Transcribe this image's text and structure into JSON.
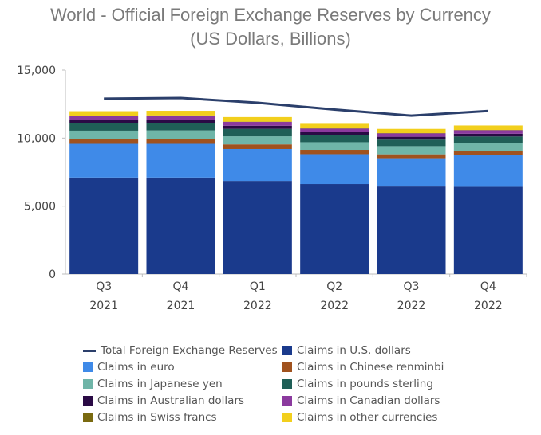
{
  "chart_data": {
    "type": "bar",
    "title_line1": "World - Official Foreign Exchange Reserves by Currency",
    "title_line2": "(US Dollars, Billions)",
    "categories": [
      {
        "quarter": "Q3",
        "year": "2021"
      },
      {
        "quarter": "Q4",
        "year": "2021"
      },
      {
        "quarter": "Q1",
        "year": "2022"
      },
      {
        "quarter": "Q2",
        "year": "2022"
      },
      {
        "quarter": "Q3",
        "year": "2022"
      },
      {
        "quarter": "Q4",
        "year": "2022"
      }
    ],
    "ylim": [
      0,
      15000
    ],
    "yticks": [
      0,
      5000,
      10000,
      15000
    ],
    "ytick_labels": [
      "0",
      "5,000",
      "10,000",
      "15,000"
    ],
    "stacked": true,
    "series": [
      {
        "name": "Claims in U.S. dollars",
        "color": "#1a3a8c",
        "values": [
          7100,
          7100,
          6850,
          6620,
          6440,
          6420
        ]
      },
      {
        "name": "Claims in euro",
        "color": "#3f8ae8",
        "values": [
          2480,
          2480,
          2350,
          2200,
          2080,
          2350
        ]
      },
      {
        "name": "Claims in Chinese renminbi",
        "color": "#a0521e",
        "values": [
          330,
          340,
          340,
          320,
          290,
          300
        ]
      },
      {
        "name": "Claims in Japanese yen",
        "color": "#6fb5a8",
        "values": [
          640,
          650,
          590,
          560,
          600,
          570
        ]
      },
      {
        "name": "Claims in pounds sterling",
        "color": "#1f5f57",
        "values": [
          560,
          560,
          550,
          510,
          480,
          480
        ]
      },
      {
        "name": "Claims in Australian dollars",
        "color": "#2a0a45",
        "values": [
          230,
          230,
          230,
          220,
          210,
          200
        ]
      },
      {
        "name": "Claims in Canadian dollars",
        "color": "#8b3a9e",
        "values": [
          290,
          290,
          280,
          270,
          250,
          260
        ]
      },
      {
        "name": "Claims in Swiss francs",
        "color": "#7a6a10",
        "values": [
          20,
          20,
          20,
          20,
          20,
          20
        ]
      },
      {
        "name": "Claims in other currencies",
        "color": "#f2cf1d",
        "values": [
          330,
          340,
          340,
          330,
          310,
          330
        ]
      }
    ],
    "line_series": {
      "name": "Total Foreign Exchange Reserves",
      "color": "#2b3f6b",
      "values": [
        12900,
        12950,
        12600,
        12100,
        11650,
        12000
      ]
    },
    "legend": {
      "position": "bottom",
      "order": [
        "Total Foreign Exchange Reserves",
        "Claims in U.S. dollars",
        "Claims in euro",
        "Claims in Chinese renminbi",
        "Claims in Japanese yen",
        "Claims in pounds sterling",
        "Claims in Australian dollars",
        "Claims in Canadian dollars",
        "Claims in Swiss francs",
        "Claims in other currencies"
      ]
    },
    "grid": false
  }
}
